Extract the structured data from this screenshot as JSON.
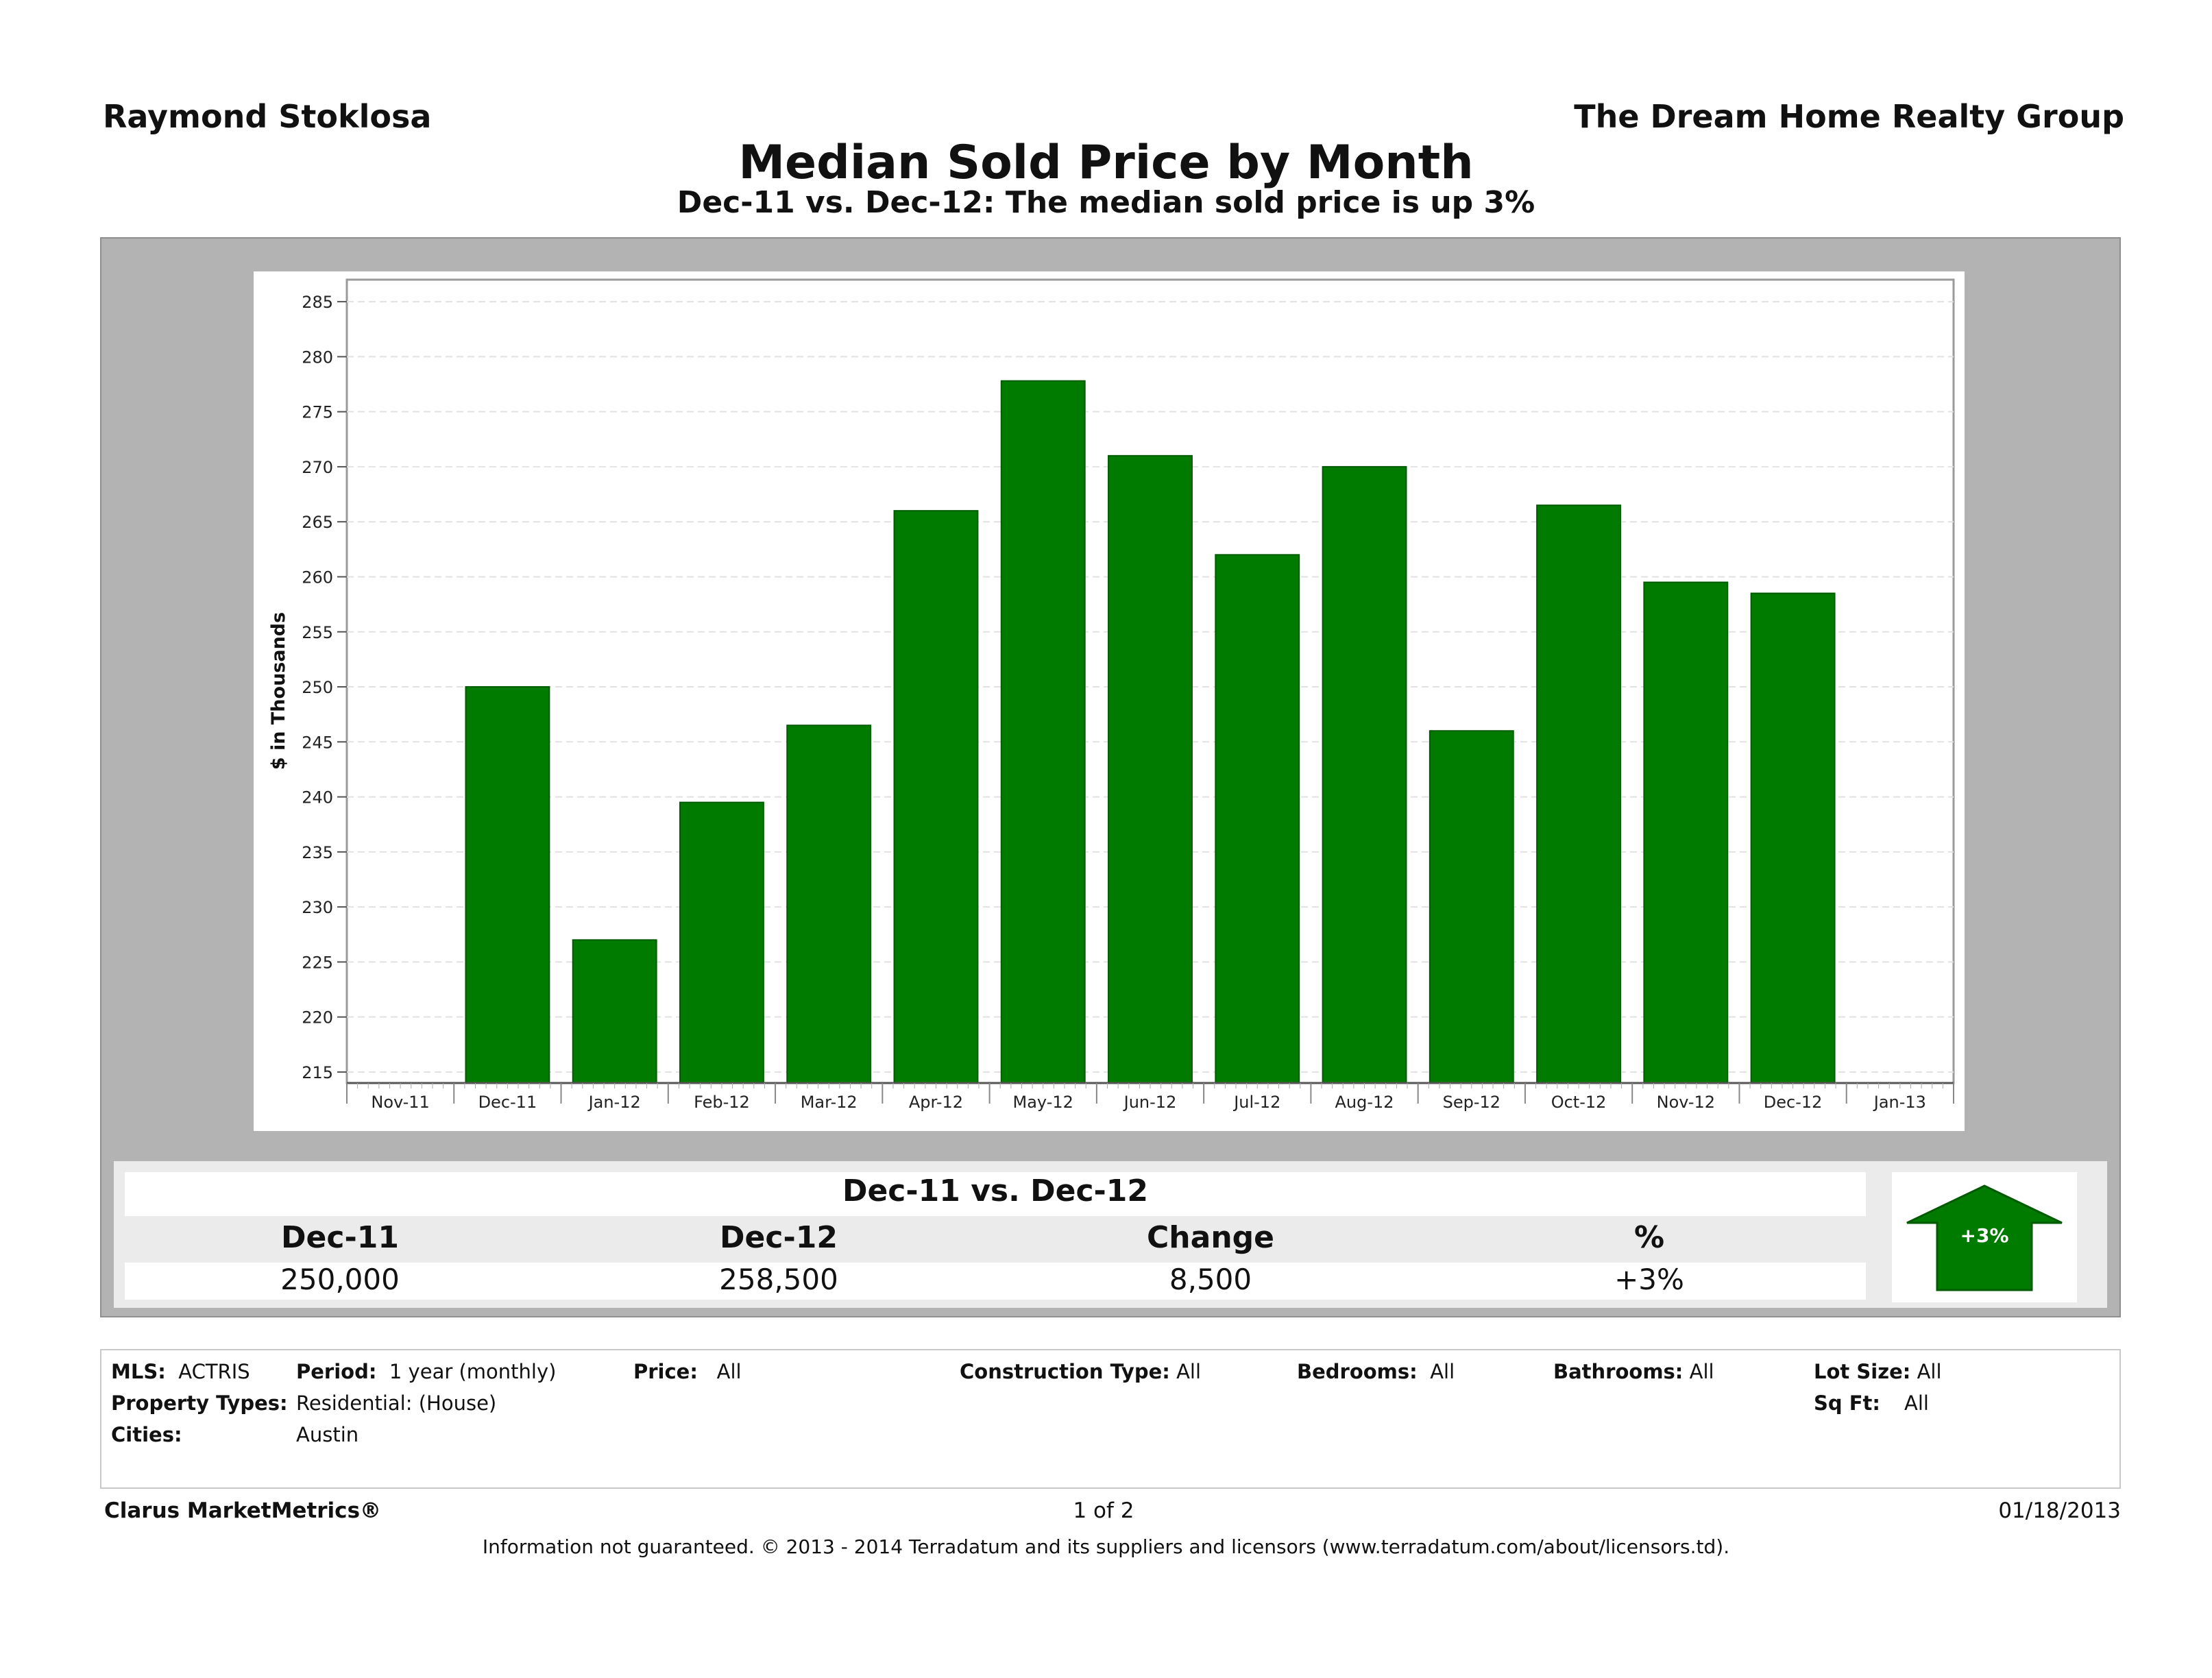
{
  "header": {
    "agent": "Raymond Stoklosa",
    "company": "The Dream Home Realty Group",
    "title": "Median Sold Price by Month",
    "subtitle": "Dec-11 vs. Dec-12:  The median sold price is up 3%"
  },
  "chart_data": {
    "type": "bar",
    "title": "Median Sold Price by Month",
    "ylabel": "$ in Thousands",
    "xlabel": "",
    "x_ticks": [
      "Nov-11",
      "Dec-11",
      "Jan-12",
      "Feb-12",
      "Mar-12",
      "Apr-12",
      "May-12",
      "Jun-12",
      "Jul-12",
      "Aug-12",
      "Sep-12",
      "Oct-12",
      "Nov-12",
      "Dec-12",
      "Jan-13"
    ],
    "categories": [
      "Dec-11",
      "Jan-12",
      "Feb-12",
      "Mar-12",
      "Apr-12",
      "May-12",
      "Jun-12",
      "Jul-12",
      "Aug-12",
      "Sep-12",
      "Oct-12",
      "Nov-12",
      "Dec-12"
    ],
    "values": [
      250,
      227,
      239.5,
      246.5,
      266,
      277.8,
      271,
      262,
      270,
      246,
      266.5,
      259.5,
      258.5
    ],
    "ylim": [
      214,
      287
    ],
    "y_ticks": [
      215,
      220,
      225,
      230,
      235,
      240,
      245,
      250,
      255,
      260,
      265,
      270,
      275,
      280,
      285
    ],
    "grid": true,
    "bar_color": "#007b00"
  },
  "summary": {
    "title": "Dec-11 vs. Dec-12",
    "headers": [
      "Dec-11",
      "Dec-12",
      "Change",
      "%"
    ],
    "values": [
      "250,000",
      "258,500",
      "8,500",
      "+3%"
    ],
    "arrow_label": "+3%",
    "arrow_icon": "up-arrow-icon"
  },
  "criteria": {
    "mls_label": "MLS:",
    "mls_value": "ACTRIS",
    "period_label": "Period:",
    "period_value": "1 year (monthly)",
    "price_label": "Price:",
    "price_value": "All",
    "construction_label": "Construction Type:",
    "construction_value": "All",
    "bedrooms_label": "Bedrooms:",
    "bedrooms_value": "All",
    "bathrooms_label": "Bathrooms:",
    "bathrooms_value": "All",
    "lot_label": "Lot Size:",
    "lot_value": "All",
    "property_label": "Property Types:",
    "property_value": "Residential: (House)",
    "sqft_label": "Sq Ft:",
    "sqft_value": "All",
    "cities_label": "Cities:",
    "cities_value": "Austin"
  },
  "footer": {
    "brand": "Clarus MarketMetrics®",
    "page": "1 of 2",
    "date": "01/18/2013",
    "disclaimer": "Information not guaranteed.  © 2013 - 2014 Terradatum and its suppliers and licensors (www.terradatum.com/about/licensors.td)."
  }
}
